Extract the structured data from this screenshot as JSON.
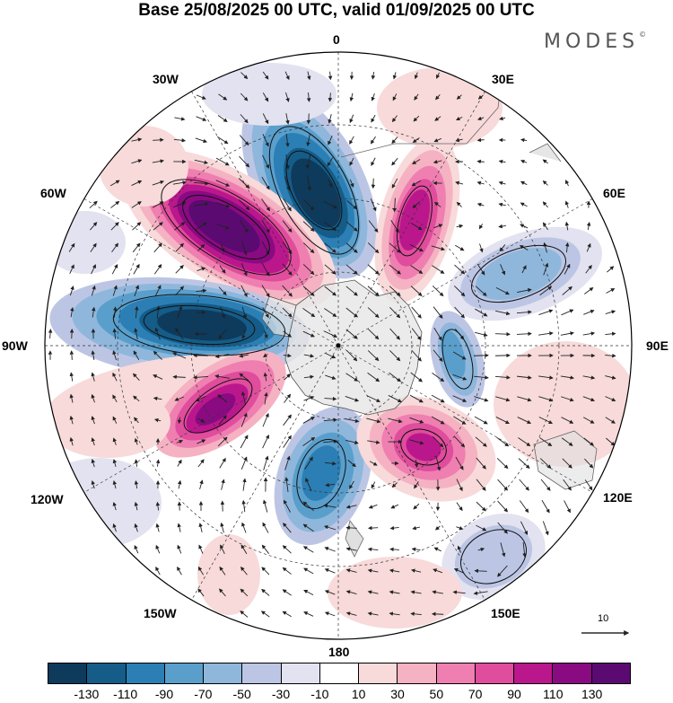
{
  "title": "Base 25/08/2025 00 UTC, valid 01/09/2025 00 UTC",
  "brand": "MODES",
  "brand_mark": "©",
  "longitude_labels": {
    "top": "0",
    "top_right": "30E",
    "right_upper": "60E",
    "right": "90E",
    "right_lower": "120E",
    "bottom_right": "150E",
    "bottom": "180",
    "bottom_left": "150W",
    "left_lower": "120W",
    "left": "90W",
    "left_upper": "60W",
    "top_left": "30W"
  },
  "reference_vector": {
    "label": "10"
  },
  "colorbar": {
    "colors": [
      "#0e3a5c",
      "#155c88",
      "#2b7fb4",
      "#5a9fcc",
      "#8fb7dc",
      "#bcc6e4",
      "#e2e2f0",
      "#ffffff",
      "#f8dada",
      "#f5b2c2",
      "#ef7fb0",
      "#df4d9c",
      "#bb178d",
      "#8a0a82",
      "#5b0a72"
    ],
    "tick_labels": [
      "-130",
      "-110",
      "-90",
      "-70",
      "-50",
      "-30",
      "-10",
      "10",
      "30",
      "50",
      "70",
      "90",
      "110",
      "130"
    ]
  },
  "icon_names": [
    "north-pole-center-icon",
    "reference-arrow-icon"
  ]
}
